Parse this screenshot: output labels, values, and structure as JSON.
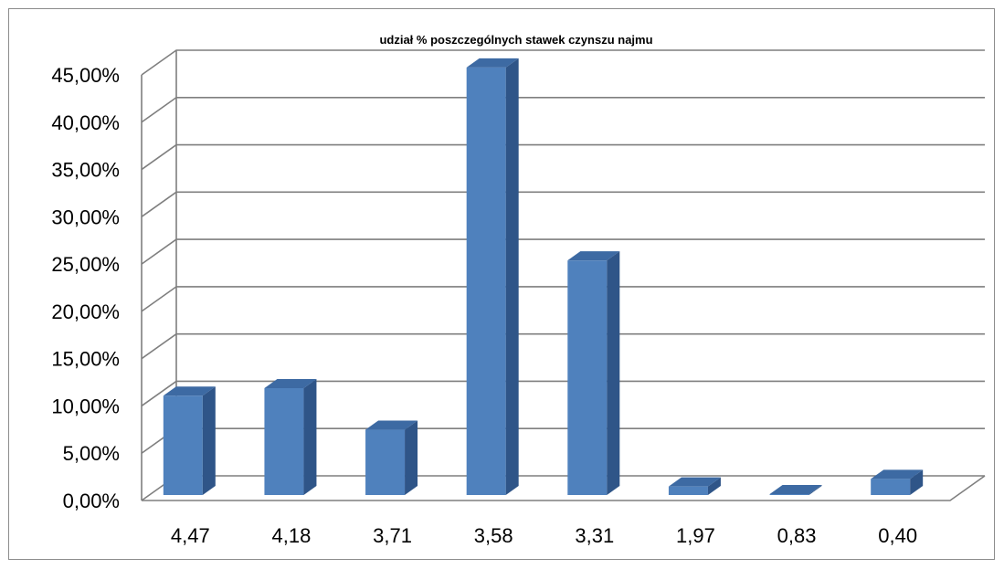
{
  "chart_data": {
    "type": "bar",
    "title": "udział % poszczególnych  stawek czynszu najmu",
    "categories": [
      "4,47",
      "4,18",
      "3,71",
      "3,58",
      "3,31",
      "1,97",
      "0,83",
      "0,40"
    ],
    "values": [
      10.5,
      11.3,
      6.9,
      45.2,
      24.8,
      0.9,
      0.1,
      1.7
    ],
    "yticks": [
      "0,00%",
      "5,00%",
      "10,00%",
      "15,00%",
      "20,00%",
      "25,00%",
      "30,00%",
      "35,00%",
      "40,00%",
      "45,00%"
    ],
    "ylim": [
      0,
      45
    ],
    "grid": true,
    "bar_color": "#4f81bd",
    "bar_side_color": "#2f5588",
    "bar_top_color": "#3d6aa3"
  }
}
